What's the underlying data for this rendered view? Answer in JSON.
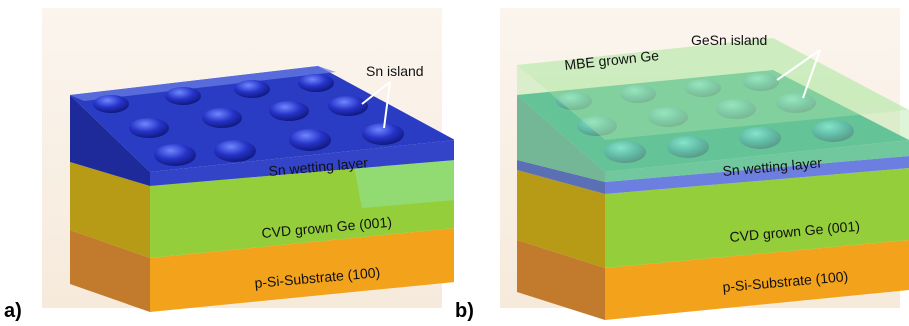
{
  "panels": {
    "a": {
      "letter": "a)",
      "labels": {
        "island": "Sn island",
        "wetting": "Sn wetting layer",
        "ge": "CVD grown Ge (001)",
        "substrate": "p-Si-Substrate (100)"
      }
    },
    "b": {
      "letter": "b)",
      "labels": {
        "island": "GeSn island",
        "mbe": "MBE grown Ge",
        "wetting": "Sn wetting layer",
        "ge": "CVD grown Ge (001)",
        "substrate": "p-Si-Substrate (100)"
      }
    }
  },
  "colors": {
    "background": "#f8eee2",
    "substrate": "#f3a21b",
    "ge_layer": "#94cf3b",
    "sn_layer": "#2a3cc4",
    "mbe_layer": "#a9dc98",
    "gesn_island": "#2aa0a6"
  }
}
